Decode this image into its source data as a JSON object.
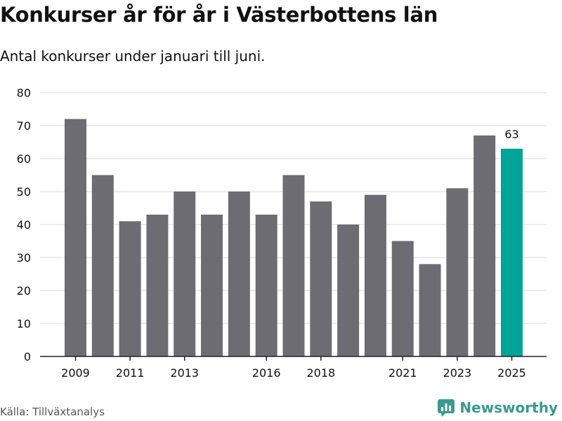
{
  "header": {
    "title": "Konkurser år för år i Västerbottens län",
    "subtitle": "Antal konkurser under januari till juni."
  },
  "footer": {
    "source": "Källa: Tillväxtanalys",
    "brand": "Newsworthy",
    "brand_icon": "newsworthy-logo-icon"
  },
  "colors": {
    "bar": "#6d6c72",
    "highlight": "#00a598",
    "grid": "#d9d9d9",
    "axis": "#222222",
    "text": "#111111",
    "brand": "#3a9a8f"
  },
  "chart_data": {
    "type": "bar",
    "categories": [
      "2009",
      "2010",
      "2011",
      "2012",
      "2013",
      "2014",
      "2015",
      "2016",
      "2017",
      "2018",
      "2019",
      "2020",
      "2021",
      "2022",
      "2023",
      "2024",
      "2025"
    ],
    "values": [
      72,
      55,
      41,
      43,
      50,
      43,
      50,
      43,
      55,
      47,
      40,
      49,
      35,
      28,
      51,
      67,
      63
    ],
    "x_tick_labels": [
      "2009",
      "2011",
      "2013",
      "2016",
      "2018",
      "2021",
      "2023",
      "2025"
    ],
    "y_ticks": [
      0,
      10,
      20,
      30,
      40,
      50,
      60,
      70,
      80
    ],
    "ylim": [
      0,
      80
    ],
    "highlight_category": "2025",
    "data_labels": [
      {
        "category": "2025",
        "value": "63"
      }
    ],
    "grid": true,
    "legend": "none",
    "title": "Konkurser år för år i Västerbottens län",
    "xlabel": "",
    "ylabel": ""
  }
}
